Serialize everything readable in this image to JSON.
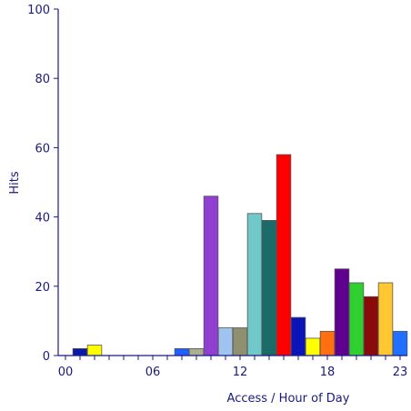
{
  "chart_data": {
    "type": "bar",
    "title": "",
    "xlabel": "Access / Hour of Day",
    "ylabel": "Hits",
    "ylim": [
      0,
      100
    ],
    "y_ticks": [
      0,
      20,
      40,
      60,
      80,
      100
    ],
    "x_tick_labels": [
      {
        "hour": 0,
        "label": "00"
      },
      {
        "hour": 6,
        "label": "06"
      },
      {
        "hour": 12,
        "label": "12"
      },
      {
        "hour": 18,
        "label": "18"
      },
      {
        "hour": 23,
        "label": "23"
      }
    ],
    "categories": [
      "00",
      "01",
      "02",
      "03",
      "04",
      "05",
      "06",
      "07",
      "08",
      "09",
      "10",
      "11",
      "12",
      "13",
      "14",
      "15",
      "16",
      "17",
      "18",
      "19",
      "20",
      "21",
      "22",
      "23"
    ],
    "values": [
      0,
      2,
      3,
      0,
      0,
      0,
      0,
      0,
      2,
      2,
      46,
      8,
      8,
      41,
      39,
      58,
      11,
      5,
      7,
      25,
      21,
      17,
      21,
      7
    ],
    "bar_colors": [
      "#1f3fd6",
      "#0a1aa8",
      "#ffff00",
      "#ff8000",
      "#ff0000",
      "#9040d0",
      "#40b0b0",
      "#30a030",
      "#2060ff",
      "#a8b090",
      "#9040d0",
      "#a0c4f0",
      "#909070",
      "#70c8c8",
      "#1a6a68",
      "#ff0000",
      "#0a14b8",
      "#ffff00",
      "#ff7010",
      "#600090",
      "#30d030",
      "#8a0a0a",
      "#ffc830",
      "#2070ff"
    ],
    "grid": false,
    "legend": "none"
  }
}
